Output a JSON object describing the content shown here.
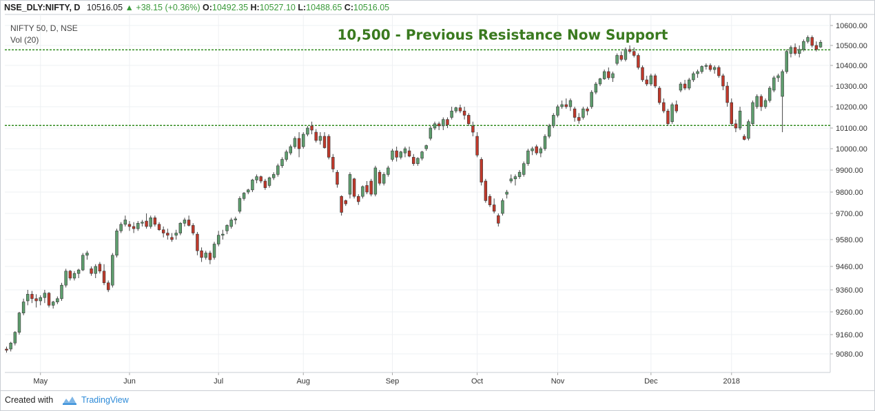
{
  "header": {
    "symbol": "NSE_DLY:NIFTY, D",
    "last": "10516.05",
    "change": "+38.15 (+0.36%)",
    "open_label": "O:",
    "open": "10492.35",
    "high_label": "H:",
    "high": "10527.10",
    "low_label": "L:",
    "low": "10488.65",
    "close_label": "C:",
    "close": "10516.05"
  },
  "legend": {
    "line1": "NIFTY 50, D, NSE",
    "line2": "Vol (20)"
  },
  "footer": {
    "created_with": "Created with",
    "brand": "TradingView",
    "brand_icon": "tradingview-logo-icon"
  },
  "colors": {
    "up": "#5e9e6e",
    "down": "#c0392b",
    "support": "#2f8a1e",
    "annotation": "#3a7a1f",
    "grid": "#eef0f3",
    "axis_text": "#333333"
  },
  "chart_data": {
    "type": "candlestick",
    "title": "NIFTY 50, D, NSE",
    "indicator": "Vol (20)",
    "y_ticks": [
      9080,
      9160,
      9260,
      9360,
      9460,
      9580,
      9700,
      9800,
      9900,
      10000,
      10100,
      10200,
      10300,
      10400,
      10500,
      10600
    ],
    "y_tick_labels": [
      "9080.00",
      "9160.00",
      "9260.00",
      "9360.00",
      "9460.00",
      "9580.00",
      "9700.00",
      "9800.00",
      "9900.00",
      "10000.00",
      "10100.00",
      "10200.00",
      "10300.00",
      "10400.00",
      "10500.00",
      "10600.00"
    ],
    "ylim": [
      9020,
      10650
    ],
    "x_ticks": [
      {
        "label": "May",
        "index": 8
      },
      {
        "label": "Jun",
        "index": 29
      },
      {
        "label": "Jul",
        "index": 50
      },
      {
        "label": "Aug",
        "index": 70
      },
      {
        "label": "Sep",
        "index": 91
      },
      {
        "label": "Oct",
        "index": 111
      },
      {
        "label": "Nov",
        "index": 130
      },
      {
        "label": "Dec",
        "index": 152
      },
      {
        "label": "2018",
        "index": 171
      }
    ],
    "horizontal_lines": [
      {
        "value": 10478,
        "style": "dashed"
      },
      {
        "value": 10112,
        "style": "dashed"
      }
    ],
    "annotation": {
      "text": "10,500 - Previous Resistance Now Support",
      "x_index": 78,
      "y": 10530
    },
    "candles": [
      [
        9100,
        9110,
        9085,
        9095
      ],
      [
        9100,
        9130,
        9090,
        9125
      ],
      [
        9125,
        9175,
        9115,
        9170
      ],
      [
        9170,
        9260,
        9160,
        9255
      ],
      [
        9255,
        9320,
        9245,
        9305
      ],
      [
        9310,
        9360,
        9290,
        9340
      ],
      [
        9340,
        9355,
        9300,
        9320
      ],
      [
        9320,
        9340,
        9280,
        9310
      ],
      [
        9310,
        9335,
        9290,
        9325
      ],
      [
        9325,
        9360,
        9300,
        9345
      ],
      [
        9345,
        9350,
        9280,
        9290
      ],
      [
        9290,
        9310,
        9275,
        9305
      ],
      [
        9305,
        9330,
        9295,
        9320
      ],
      [
        9320,
        9390,
        9310,
        9380
      ],
      [
        9380,
        9450,
        9370,
        9440
      ],
      [
        9440,
        9445,
        9400,
        9410
      ],
      [
        9410,
        9440,
        9400,
        9430
      ],
      [
        9430,
        9450,
        9410,
        9445
      ],
      [
        9445,
        9520,
        9440,
        9510
      ],
      [
        9510,
        9530,
        9490,
        9520
      ],
      [
        9450,
        9460,
        9420,
        9430
      ],
      [
        9430,
        9470,
        9410,
        9460
      ],
      [
        9470,
        9480,
        9430,
        9440
      ],
      [
        9440,
        9470,
        9380,
        9390
      ],
      [
        9390,
        9400,
        9350,
        9360
      ],
      [
        9380,
        9520,
        9370,
        9510
      ],
      [
        9510,
        9630,
        9500,
        9620
      ],
      [
        9620,
        9660,
        9610,
        9650
      ],
      [
        9650,
        9690,
        9640,
        9670
      ],
      [
        9650,
        9665,
        9620,
        9640
      ],
      [
        9640,
        9660,
        9610,
        9630
      ],
      [
        9630,
        9665,
        9620,
        9655
      ],
      [
        9655,
        9670,
        9640,
        9660
      ],
      [
        9665,
        9700,
        9630,
        9640
      ],
      [
        9640,
        9690,
        9630,
        9680
      ],
      [
        9680,
        9690,
        9640,
        9650
      ],
      [
        9650,
        9660,
        9620,
        9625
      ],
      [
        9625,
        9640,
        9590,
        9610
      ],
      [
        9610,
        9630,
        9580,
        9600
      ],
      [
        9590,
        9610,
        9570,
        9580
      ],
      [
        9600,
        9625,
        9580,
        9610
      ],
      [
        9610,
        9660,
        9600,
        9655
      ],
      [
        9655,
        9680,
        9640,
        9670
      ],
      [
        9670,
        9690,
        9640,
        9645
      ],
      [
        9645,
        9655,
        9600,
        9610
      ],
      [
        9605,
        9615,
        9510,
        9530
      ],
      [
        9530,
        9545,
        9480,
        9500
      ],
      [
        9500,
        9530,
        9490,
        9520
      ],
      [
        9520,
        9530,
        9470,
        9490
      ],
      [
        9500,
        9570,
        9490,
        9560
      ],
      [
        9560,
        9620,
        9550,
        9600
      ],
      [
        9600,
        9625,
        9580,
        9605
      ],
      [
        9620,
        9650,
        9605,
        9645
      ],
      [
        9640,
        9680,
        9630,
        9670
      ],
      [
        9670,
        9685,
        9650,
        9675
      ],
      [
        9710,
        9780,
        9700,
        9770
      ],
      [
        9770,
        9800,
        9760,
        9795
      ],
      [
        9800,
        9815,
        9790,
        9810
      ],
      [
        9810,
        9860,
        9800,
        9855
      ],
      [
        9855,
        9880,
        9840,
        9870
      ],
      [
        9870,
        9875,
        9840,
        9850
      ],
      [
        9850,
        9860,
        9810,
        9820
      ],
      [
        9830,
        9870,
        9820,
        9865
      ],
      [
        9865,
        9890,
        9855,
        9880
      ],
      [
        9880,
        9930,
        9870,
        9920
      ],
      [
        9920,
        9960,
        9910,
        9950
      ],
      [
        9950,
        9995,
        9940,
        9985
      ],
      [
        9980,
        10020,
        9970,
        10010
      ],
      [
        10010,
        10060,
        10000,
        10050
      ],
      [
        10050,
        10080,
        9960,
        10000
      ],
      [
        10010,
        10080,
        10000,
        10070
      ],
      [
        10070,
        10110,
        10060,
        10100
      ],
      [
        10110,
        10130,
        10070,
        10090
      ],
      [
        10080,
        10095,
        10030,
        10040
      ],
      [
        10040,
        10080,
        10020,
        10060
      ],
      [
        10060,
        10080,
        10000,
        10005
      ],
      [
        10060,
        10070,
        9950,
        9960
      ],
      [
        9960,
        9975,
        9890,
        9905
      ],
      [
        9890,
        9900,
        9820,
        9835
      ],
      [
        9780,
        9785,
        9690,
        9705
      ],
      [
        9760,
        9765,
        9735,
        9745
      ],
      [
        9790,
        9890,
        9770,
        9880
      ],
      [
        9860,
        9865,
        9770,
        9780
      ],
      [
        9780,
        9790,
        9740,
        9755
      ],
      [
        9780,
        9830,
        9770,
        9825
      ],
      [
        9830,
        9850,
        9790,
        9800
      ],
      [
        9850,
        9860,
        9780,
        9790
      ],
      [
        9790,
        9920,
        9780,
        9910
      ],
      [
        9890,
        9900,
        9830,
        9840
      ],
      [
        9840,
        9890,
        9830,
        9880
      ],
      [
        9880,
        9920,
        9870,
        9910
      ],
      [
        9950,
        10000,
        9940,
        9990
      ],
      [
        9990,
        10010,
        9940,
        9960
      ],
      [
        9960,
        9990,
        9950,
        9985
      ],
      [
        9980,
        10010,
        9960,
        10000
      ],
      [
        9990,
        10010,
        9960,
        9965
      ],
      [
        9960,
        9975,
        9920,
        9930
      ],
      [
        9930,
        9960,
        9920,
        9955
      ],
      [
        9955,
        9990,
        9945,
        9985
      ],
      [
        10000,
        10020,
        9990,
        10015
      ],
      [
        10050,
        10110,
        10040,
        10100
      ],
      [
        10100,
        10130,
        10090,
        10120
      ],
      [
        10120,
        10130,
        10090,
        10110
      ],
      [
        10110,
        10150,
        10090,
        10140
      ],
      [
        10140,
        10150,
        10100,
        10115
      ],
      [
        10150,
        10200,
        10140,
        10180
      ],
      [
        10180,
        10200,
        10170,
        10195
      ],
      [
        10195,
        10210,
        10170,
        10180
      ],
      [
        10180,
        10200,
        10140,
        10160
      ],
      [
        10160,
        10170,
        10110,
        10120
      ],
      [
        10110,
        10130,
        10060,
        10080
      ],
      [
        10060,
        10080,
        9960,
        9970
      ],
      [
        9950,
        9960,
        9830,
        9845
      ],
      [
        9850,
        9860,
        9750,
        9760
      ],
      [
        9780,
        9790,
        9730,
        9740
      ],
      [
        9740,
        9770,
        9700,
        9710
      ],
      [
        9690,
        9700,
        9640,
        9655
      ],
      [
        9700,
        9770,
        9690,
        9760
      ],
      [
        9790,
        9810,
        9770,
        9800
      ],
      [
        9850,
        9880,
        9840,
        9860
      ],
      [
        9860,
        9880,
        9830,
        9870
      ],
      [
        9870,
        9900,
        9860,
        9890
      ],
      [
        9880,
        9940,
        9870,
        9930
      ],
      [
        9930,
        10000,
        9920,
        9990
      ],
      [
        9990,
        10010,
        9970,
        10000
      ],
      [
        10010,
        10020,
        9970,
        9980
      ],
      [
        9980,
        10010,
        9960,
        10000
      ],
      [
        10000,
        10070,
        9990,
        10060
      ],
      [
        10060,
        10120,
        10050,
        10110
      ],
      [
        10110,
        10170,
        10100,
        10160
      ],
      [
        10160,
        10210,
        10150,
        10200
      ],
      [
        10200,
        10230,
        10190,
        10210
      ],
      [
        10210,
        10240,
        10190,
        10200
      ],
      [
        10200,
        10240,
        10180,
        10230
      ],
      [
        10190,
        10200,
        10130,
        10150
      ],
      [
        10150,
        10170,
        10120,
        10135
      ],
      [
        10150,
        10200,
        10140,
        10190
      ],
      [
        10190,
        10200,
        10160,
        10180
      ],
      [
        10200,
        10280,
        10190,
        10270
      ],
      [
        10270,
        10320,
        10260,
        10310
      ],
      [
        10310,
        10340,
        10300,
        10335
      ],
      [
        10335,
        10380,
        10330,
        10370
      ],
      [
        10370,
        10390,
        10330,
        10340
      ],
      [
        10340,
        10370,
        10320,
        10360
      ],
      [
        10410,
        10460,
        10400,
        10450
      ],
      [
        10450,
        10470,
        10420,
        10430
      ],
      [
        10430,
        10490,
        10420,
        10480
      ],
      [
        10480,
        10500,
        10460,
        10470
      ],
      [
        10470,
        10490,
        10440,
        10450
      ],
      [
        10450,
        10460,
        10380,
        10390
      ],
      [
        10390,
        10400,
        10320,
        10330
      ],
      [
        10330,
        10350,
        10300,
        10310
      ],
      [
        10310,
        10360,
        10300,
        10350
      ],
      [
        10350,
        10360,
        10290,
        10300
      ],
      [
        10290,
        10300,
        10210,
        10220
      ],
      [
        10220,
        10240,
        10170,
        10180
      ],
      [
        10180,
        10190,
        10110,
        10120
      ],
      [
        10130,
        10220,
        10120,
        10210
      ],
      [
        10210,
        10230,
        10170,
        10180
      ],
      [
        10280,
        10320,
        10270,
        10310
      ],
      [
        10310,
        10330,
        10280,
        10290
      ],
      [
        10290,
        10340,
        10280,
        10330
      ],
      [
        10330,
        10370,
        10320,
        10360
      ],
      [
        10360,
        10380,
        10340,
        10370
      ],
      [
        10370,
        10400,
        10360,
        10395
      ],
      [
        10395,
        10410,
        10380,
        10400
      ],
      [
        10400,
        10410,
        10370,
        10380
      ],
      [
        10380,
        10400,
        10360,
        10390
      ],
      [
        10390,
        10400,
        10340,
        10350
      ],
      [
        10350,
        10360,
        10280,
        10300
      ],
      [
        10300,
        10320,
        10200,
        10220
      ],
      [
        10220,
        10240,
        10110,
        10120
      ],
      [
        10120,
        10140,
        10080,
        10100
      ],
      [
        10100,
        10200,
        10090,
        10180
      ],
      [
        10060,
        10070,
        10040,
        10045
      ],
      [
        10050,
        10140,
        10040,
        10130
      ],
      [
        10120,
        10230,
        10110,
        10220
      ],
      [
        10200,
        10260,
        10190,
        10250
      ],
      [
        10250,
        10260,
        10180,
        10200
      ],
      [
        10200,
        10240,
        10190,
        10230
      ],
      [
        10230,
        10300,
        10220,
        10290
      ],
      [
        10280,
        10350,
        10270,
        10340
      ],
      [
        10340,
        10360,
        10320,
        10350
      ],
      [
        10250,
        10380,
        10080,
        10370
      ],
      [
        10370,
        10480,
        10360,
        10470
      ],
      [
        10460,
        10500,
        10440,
        10490
      ],
      [
        10490,
        10510,
        10450,
        10460
      ],
      [
        10460,
        10500,
        10440,
        10480
      ],
      [
        10480,
        10530,
        10470,
        10520
      ],
      [
        10520,
        10550,
        10510,
        10540
      ],
      [
        10540,
        10550,
        10490,
        10500
      ],
      [
        10500,
        10520,
        10470,
        10480
      ],
      [
        10492,
        10527,
        10488,
        10516
      ]
    ]
  }
}
